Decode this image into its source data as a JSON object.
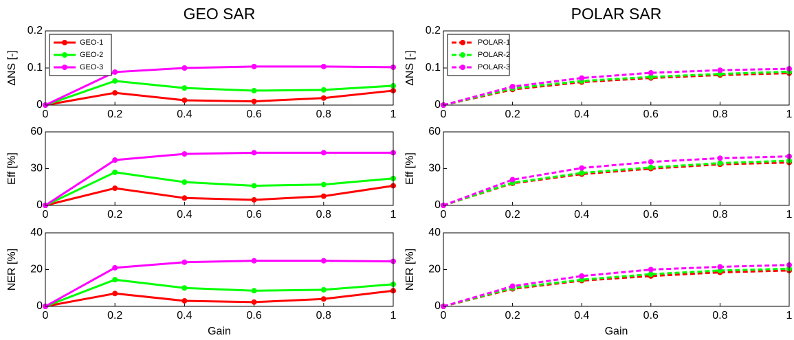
{
  "chart_data": [
    {
      "type": "line",
      "title": "GEO SAR",
      "ylabel": "ΔNS [-]",
      "x": [
        0,
        0.2,
        0.4,
        0.6,
        0.8,
        1
      ],
      "xlim": [
        0,
        1
      ],
      "xticks": [
        0,
        0.2,
        0.4,
        0.6,
        0.8,
        1
      ],
      "ylim": [
        0,
        0.2
      ],
      "yticks": [
        0,
        0.1,
        0.2
      ],
      "legend": "upper left",
      "linestyle": "solid",
      "series": [
        {
          "name": "GEO-1",
          "color": "#ff0000",
          "values": [
            0,
            0.033,
            0.013,
            0.01,
            0.019,
            0.039
          ]
        },
        {
          "name": "GEO-2",
          "color": "#00ff00",
          "values": [
            0,
            0.065,
            0.046,
            0.039,
            0.041,
            0.052
          ]
        },
        {
          "name": "GEO-3",
          "color": "#ff00ff",
          "values": [
            0,
            0.089,
            0.1,
            0.104,
            0.104,
            0.102
          ]
        }
      ]
    },
    {
      "type": "line",
      "title": "POLAR SAR",
      "ylabel": "ΔNS [-]",
      "x": [
        0,
        0.2,
        0.4,
        0.6,
        0.8,
        1
      ],
      "xlim": [
        0,
        1
      ],
      "xticks": [
        0,
        0.2,
        0.4,
        0.6,
        0.8,
        1
      ],
      "ylim": [
        0,
        0.2
      ],
      "yticks": [
        0,
        0.1,
        0.2
      ],
      "legend": "upper left",
      "linestyle": "dashed",
      "series": [
        {
          "name": "POLAR-1",
          "color": "#ff0000",
          "values": [
            0,
            0.042,
            0.062,
            0.073,
            0.081,
            0.086
          ]
        },
        {
          "name": "POLAR-2",
          "color": "#00ff00",
          "values": [
            0,
            0.045,
            0.065,
            0.076,
            0.084,
            0.09
          ]
        },
        {
          "name": "POLAR-3",
          "color": "#ff00ff",
          "values": [
            0,
            0.05,
            0.073,
            0.087,
            0.094,
            0.098
          ]
        }
      ]
    },
    {
      "type": "line",
      "ylabel": "Eff [%]",
      "x": [
        0,
        0.2,
        0.4,
        0.6,
        0.8,
        1
      ],
      "xlim": [
        0,
        1
      ],
      "xticks": [
        0,
        0.2,
        0.4,
        0.6,
        0.8,
        1
      ],
      "ylim": [
        0,
        60
      ],
      "yticks": [
        0,
        30,
        60
      ],
      "linestyle": "solid",
      "series": [
        {
          "color": "#ff0000",
          "values": [
            0,
            14,
            6,
            4.5,
            7.5,
            16
          ]
        },
        {
          "color": "#00ff00",
          "values": [
            0,
            27,
            19,
            16,
            17,
            22
          ]
        },
        {
          "color": "#ff00ff",
          "values": [
            0,
            37,
            42,
            43,
            43,
            43
          ]
        }
      ]
    },
    {
      "type": "line",
      "ylabel": "Eff [%]",
      "x": [
        0,
        0.2,
        0.4,
        0.6,
        0.8,
        1
      ],
      "xlim": [
        0,
        1
      ],
      "xticks": [
        0,
        0.2,
        0.4,
        0.6,
        0.8,
        1
      ],
      "ylim": [
        0,
        60
      ],
      "yticks": [
        0,
        30,
        60
      ],
      "linestyle": "dashed",
      "series": [
        {
          "color": "#ff0000",
          "values": [
            0,
            18,
            25.5,
            30,
            33.5,
            35
          ]
        },
        {
          "color": "#00ff00",
          "values": [
            0,
            18.5,
            26.5,
            31,
            34.5,
            36.5
          ]
        },
        {
          "color": "#ff00ff",
          "values": [
            0,
            21,
            30.5,
            35.5,
            38.5,
            40
          ]
        }
      ]
    },
    {
      "type": "line",
      "ylabel": "NER [%]",
      "xlabel": "Gain",
      "x": [
        0,
        0.2,
        0.4,
        0.6,
        0.8,
        1
      ],
      "xlim": [
        0,
        1
      ],
      "xticks": [
        0,
        0.2,
        0.4,
        0.6,
        0.8,
        1
      ],
      "ylim": [
        0,
        40
      ],
      "yticks": [
        0,
        20,
        40
      ],
      "linestyle": "solid",
      "series": [
        {
          "color": "#ff0000",
          "values": [
            0,
            7,
            3,
            2.3,
            4,
            8.5
          ]
        },
        {
          "color": "#00ff00",
          "values": [
            0,
            14.5,
            10,
            8.5,
            9,
            12
          ]
        },
        {
          "color": "#ff00ff",
          "values": [
            0,
            21,
            24,
            24.8,
            24.8,
            24.5
          ]
        }
      ]
    },
    {
      "type": "line",
      "ylabel": "NER [%]",
      "xlabel": "Gain",
      "x": [
        0,
        0.2,
        0.4,
        0.6,
        0.8,
        1
      ],
      "xlim": [
        0,
        1
      ],
      "xticks": [
        0,
        0.2,
        0.4,
        0.6,
        0.8,
        1
      ],
      "ylim": [
        0,
        40
      ],
      "yticks": [
        0,
        20,
        40
      ],
      "linestyle": "dashed",
      "series": [
        {
          "color": "#ff0000",
          "values": [
            0,
            9.5,
            14,
            16.5,
            18.5,
            19.5
          ]
        },
        {
          "color": "#00ff00",
          "values": [
            0,
            10,
            14.5,
            17.5,
            19.5,
            20.5
          ]
        },
        {
          "color": "#ff00ff",
          "values": [
            0,
            11,
            16.5,
            20,
            21.5,
            22.5
          ]
        }
      ]
    }
  ]
}
